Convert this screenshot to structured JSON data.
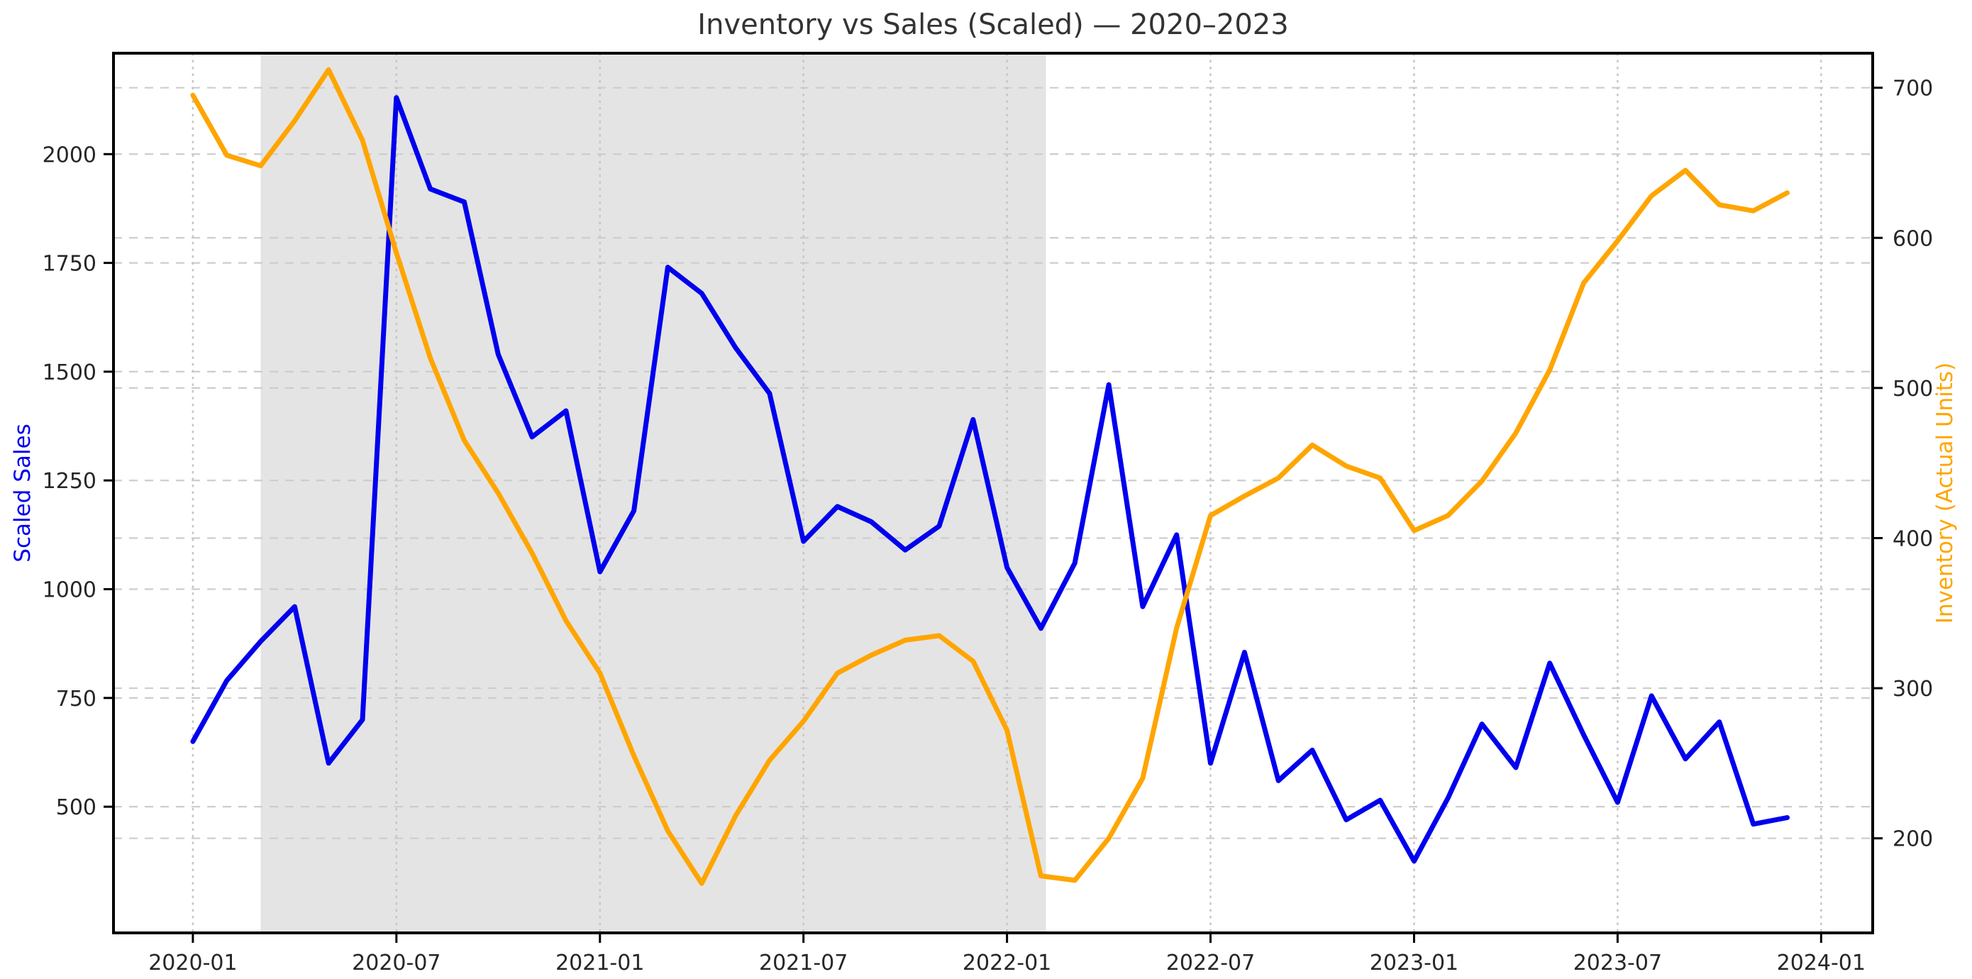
{
  "page": {
    "title": "Inventory vs Sales (Scaled) — 2020–2023"
  },
  "chart_data": {
    "type": "line",
    "title": "Inventory vs Sales (Scaled) — 2020–2023",
    "grid": true,
    "legend_position": "none",
    "x": [
      "2020-01",
      "2020-02",
      "2020-03",
      "2020-04",
      "2020-05",
      "2020-06",
      "2020-07",
      "2020-08",
      "2020-09",
      "2020-10",
      "2020-11",
      "2020-12",
      "2021-01",
      "2021-02",
      "2021-03",
      "2021-04",
      "2021-05",
      "2021-06",
      "2021-07",
      "2021-08",
      "2021-09",
      "2021-10",
      "2021-11",
      "2021-12",
      "2022-01",
      "2022-02",
      "2022-03",
      "2022-04",
      "2022-05",
      "2022-06",
      "2022-07",
      "2022-08",
      "2022-09",
      "2022-10",
      "2022-11",
      "2022-12",
      "2023-01",
      "2023-02",
      "2023-03",
      "2023-04",
      "2023-05",
      "2023-06",
      "2023-07",
      "2023-08",
      "2023-09",
      "2023-10",
      "2023-11",
      "2023-12"
    ],
    "x_tick_labels": [
      "2020-01",
      "2020-07",
      "2021-01",
      "2021-07",
      "2022-01",
      "2022-07",
      "2023-01",
      "2023-07",
      "2024-01"
    ],
    "x_tick_months": [
      0,
      6,
      12,
      18,
      24,
      30,
      36,
      42,
      48
    ],
    "xlim_months": [
      -2.34,
      49.52
    ],
    "left_axis": {
      "label": "Scaled Sales",
      "color": "#0000EE",
      "tick_values": [
        500,
        750,
        1000,
        1250,
        1500,
        1750,
        2000
      ],
      "ylim": [
        210,
        2232
      ]
    },
    "right_axis": {
      "label": "Inventory (Actual Units)",
      "color": "#FFA500",
      "tick_values": [
        200,
        300,
        400,
        500,
        600,
        700
      ],
      "ylim": [
        137,
        723
      ]
    },
    "shaded_region": {
      "start_month": 2,
      "end_month": 25.15,
      "start_label": "2020-03",
      "end_label": "2022-02",
      "color": "#c3c3c3",
      "opacity": 0.45
    },
    "series": [
      {
        "name": "Scaled Sales",
        "axis": "left",
        "color": "#0000EE",
        "values": [
          650,
          790,
          880,
          960,
          600,
          700,
          2130,
          1920,
          1890,
          1540,
          1350,
          1410,
          1040,
          1180,
          1740,
          1680,
          1555,
          1450,
          1110,
          1190,
          1155,
          1090,
          1145,
          1390,
          1050,
          910,
          1060,
          1470,
          960,
          1125,
          600,
          855,
          560,
          630,
          470,
          515,
          375,
          520,
          690,
          590,
          830,
          665,
          510,
          755,
          610,
          695,
          460,
          475
        ]
      },
      {
        "name": "Inventory (Actual Units)",
        "axis": "right",
        "color": "#FFA500",
        "values": [
          695,
          655,
          648,
          678,
          712,
          665,
          590,
          520,
          465,
          430,
          390,
          345,
          310,
          255,
          205,
          170,
          215,
          252,
          278,
          310,
          322,
          332,
          335,
          318,
          272,
          175,
          172,
          200,
          240,
          340,
          415,
          428,
          440,
          462,
          448,
          440,
          405,
          415,
          438,
          470,
          512,
          570,
          598,
          628,
          645,
          622,
          618,
          630
        ]
      }
    ],
    "style": {
      "grid_color": "#cdcdcd",
      "spine_color": "#000000",
      "tick_label_color": "#262626",
      "title_color": "#333333",
      "background": "#ffffff",
      "line_width": 7
    }
  }
}
